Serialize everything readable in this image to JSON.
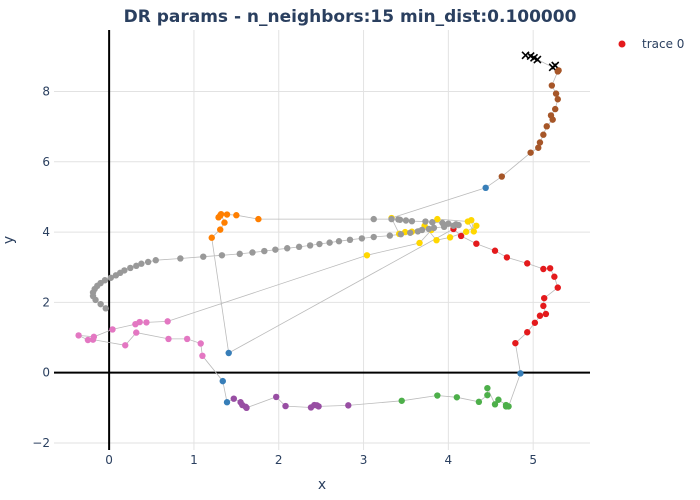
{
  "chart_data": {
    "type": "scatter",
    "title": "DR params - n_neighbors:15 min_dist:0.100000",
    "xlabel": "x",
    "ylabel": "y",
    "xlim": [
      -0.65,
      5.67
    ],
    "ylim": [
      -2.2,
      9.75
    ],
    "x_ticks": [
      0,
      1,
      2,
      3,
      4,
      5
    ],
    "y_ticks": [
      -2,
      0,
      2,
      4,
      6,
      8
    ],
    "grid": true,
    "legend": {
      "position": "top-right",
      "entries": [
        "trace 0"
      ],
      "marker_color": "#e41a1c"
    },
    "line_color": "#bbbbbb",
    "x": [
      4.91,
      4.97,
      5.01,
      5.05,
      5.23,
      5.26,
      5.3,
      5.29,
      5.22,
      5.27,
      5.29,
      5.26,
      5.21,
      5.23,
      5.16,
      5.12,
      5.08,
      5.06,
      4.97,
      4.63,
      4.44,
      3.33,
      3.42,
      3.49,
      3.57,
      3.72,
      3.86,
      4.02,
      4.21,
      4.33,
      4.27,
      4.3,
      4.23,
      3.87,
      3.8,
      3.66,
      3.04,
      0.69,
      0.44,
      0.36,
      0.31,
      0.04,
      -0.18,
      -0.36,
      -0.25,
      -0.19,
      0.19,
      0.32,
      0.7,
      0.92,
      1.08,
      1.1,
      1.34,
      1.39,
      1.47,
      1.55,
      1.57,
      1.61,
      1.62,
      1.97,
      2.08,
      2.38,
      2.45,
      2.42,
      2.47,
      2.82,
      3.45,
      3.87,
      4.1,
      4.36,
      4.46,
      4.46,
      4.55,
      4.59,
      4.68,
      4.68,
      4.71,
      4.85,
      4.79,
      4.93,
      5.02,
      5.08,
      5.15,
      5.12,
      5.13,
      5.29,
      5.25,
      5.2,
      5.12,
      4.93,
      4.69,
      4.55,
      4.33,
      4.15,
      4.06,
      1.41,
      1.21,
      1.31,
      1.36,
      1.32,
      1.29,
      1.31,
      1.39,
      1.5,
      1.76,
      3.12,
      3.33,
      3.41,
      3.43,
      3.5,
      3.57,
      3.73,
      3.81,
      3.93,
      4.0,
      4.09,
      4.12,
      4.06,
      3.95,
      3.83,
      3.77,
      3.69,
      3.64,
      3.55,
      3.44,
      3.31,
      3.12,
      2.98,
      2.84,
      2.71,
      2.6,
      2.48,
      2.37,
      2.24,
      2.1,
      1.96,
      1.83,
      1.69,
      1.54,
      1.33,
      1.11,
      0.84,
      0.55,
      0.46,
      0.38,
      0.32,
      0.25,
      0.18,
      0.13,
      0.08,
      0.02,
      -0.05,
      -0.1,
      -0.14,
      -0.17,
      -0.19,
      -0.19,
      -0.16,
      -0.1,
      -0.04
    ],
    "y": [
      9.03,
      9.01,
      8.96,
      8.91,
      8.69,
      8.74,
      8.6,
      8.57,
      8.17,
      7.94,
      7.78,
      7.5,
      7.32,
      7.2,
      7.01,
      6.77,
      6.55,
      6.4,
      6.26,
      5.58,
      5.26,
      4.4,
      3.95,
      4.0,
      4.01,
      4.18,
      3.77,
      3.85,
      4.01,
      4.18,
      4.34,
      4.02,
      4.3,
      4.37,
      4.06,
      3.69,
      3.34,
      1.46,
      1.43,
      1.44,
      1.38,
      1.23,
      1.02,
      1.06,
      0.93,
      0.94,
      0.78,
      1.14,
      0.96,
      0.96,
      0.83,
      0.48,
      -0.24,
      -0.84,
      -0.74,
      -0.84,
      -0.92,
      -0.97,
      -1.0,
      -0.69,
      -0.95,
      -0.99,
      -0.93,
      -0.92,
      -0.96,
      -0.93,
      -0.8,
      -0.65,
      -0.7,
      -0.83,
      -0.64,
      -0.44,
      -0.9,
      -0.77,
      -0.92,
      -0.96,
      -0.96,
      -0.02,
      0.84,
      1.15,
      1.42,
      1.62,
      1.67,
      1.9,
      2.12,
      2.42,
      2.73,
      2.97,
      2.95,
      3.11,
      3.28,
      3.47,
      3.67,
      3.89,
      4.09,
      0.56,
      3.84,
      4.07,
      4.27,
      4.51,
      4.42,
      4.47,
      4.5,
      4.48,
      4.37,
      4.37,
      4.37,
      4.36,
      4.35,
      4.33,
      4.31,
      4.3,
      4.28,
      4.26,
      4.24,
      4.22,
      4.2,
      4.18,
      4.15,
      4.12,
      4.09,
      4.06,
      4.02,
      3.98,
      3.94,
      3.9,
      3.86,
      3.82,
      3.78,
      3.74,
      3.7,
      3.66,
      3.62,
      3.58,
      3.54,
      3.5,
      3.46,
      3.42,
      3.38,
      3.34,
      3.3,
      3.25,
      3.2,
      3.15,
      3.1,
      3.04,
      2.98,
      2.91,
      2.84,
      2.77,
      2.7,
      2.63,
      2.55,
      2.47,
      2.38,
      2.28,
      2.18,
      2.07,
      1.95,
      1.83
    ],
    "point_colors": [
      "#000000",
      "#000000",
      "#000000",
      "#000000",
      "#000000",
      "#000000",
      "#a65628",
      "#a65628",
      "#a65628",
      "#a65628",
      "#a65628",
      "#a65628",
      "#a65628",
      "#a65628",
      "#a65628",
      "#a65628",
      "#a65628",
      "#a65628",
      "#a65628",
      "#a65628",
      "#377eb8",
      "#ffd700",
      "#ffd700",
      "#ffd700",
      "#ffd700",
      "#ffd700",
      "#ffd700",
      "#ffd700",
      "#ffd700",
      "#ffd700",
      "#ffd700",
      "#ffd700",
      "#ffd700",
      "#ffd700",
      "#ffd700",
      "#ffd700",
      "#ffd700",
      "#e377c2",
      "#e377c2",
      "#e377c2",
      "#e377c2",
      "#e377c2",
      "#e377c2",
      "#e377c2",
      "#e377c2",
      "#e377c2",
      "#e377c2",
      "#e377c2",
      "#e377c2",
      "#e377c2",
      "#e377c2",
      "#e377c2",
      "#377eb8",
      "#377eb8",
      "#984ea3",
      "#984ea3",
      "#984ea3",
      "#984ea3",
      "#984ea3",
      "#984ea3",
      "#984ea3",
      "#984ea3",
      "#984ea3",
      "#984ea3",
      "#984ea3",
      "#984ea3",
      "#4daf4a",
      "#4daf4a",
      "#4daf4a",
      "#4daf4a",
      "#4daf4a",
      "#4daf4a",
      "#4daf4a",
      "#4daf4a",
      "#4daf4a",
      "#4daf4a",
      "#4daf4a",
      "#377eb8",
      "#e41a1c",
      "#e41a1c",
      "#e41a1c",
      "#e41a1c",
      "#e41a1c",
      "#e41a1c",
      "#e41a1c",
      "#e41a1c",
      "#e41a1c",
      "#e41a1c",
      "#e41a1c",
      "#e41a1c",
      "#e41a1c",
      "#e41a1c",
      "#e41a1c",
      "#e41a1c",
      "#e41a1c",
      "#377eb8",
      "#ff7f00",
      "#ff7f00",
      "#ff7f00",
      "#ff7f00",
      "#ff7f00",
      "#ff7f00",
      "#ff7f00",
      "#ff7f00",
      "#ff7f00",
      "#999999",
      "#999999",
      "#999999",
      "#999999",
      "#999999",
      "#999999",
      "#999999",
      "#999999",
      "#999999",
      "#999999",
      "#999999",
      "#999999",
      "#999999",
      "#999999",
      "#999999",
      "#999999",
      "#999999",
      "#999999",
      "#999999",
      "#999999",
      "#999999",
      "#999999",
      "#999999",
      "#999999",
      "#999999",
      "#999999",
      "#999999",
      "#999999",
      "#999999",
      "#999999",
      "#999999",
      "#999999",
      "#999999",
      "#999999",
      "#999999",
      "#999999",
      "#999999",
      "#999999",
      "#999999",
      "#999999",
      "#999999",
      "#999999",
      "#999999",
      "#999999",
      "#999999",
      "#999999",
      "#999999",
      "#999999",
      "#999999",
      "#999999",
      "#999999",
      "#999999",
      "#999999",
      "#999999",
      "#999999",
      "#999999"
    ]
  }
}
